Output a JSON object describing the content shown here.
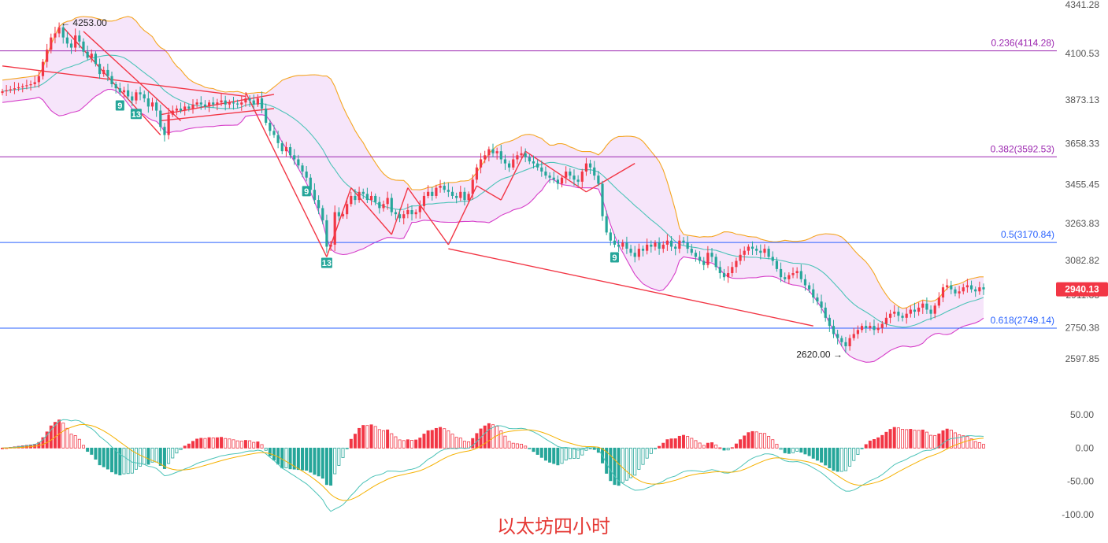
{
  "caption": "以太坊四小时",
  "current_price": {
    "label": "2940.13",
    "value": 2940.13,
    "color": "#f23645"
  },
  "colors": {
    "up": "#f23645",
    "down": "#26a69a",
    "band_fill": "#f3dcf8",
    "band_upper": "#f5a623",
    "band_lower": "#d63fc9",
    "band_mid": "#4cc3b8",
    "annotation": "#f23645",
    "macd_dif": "#4cc3b8",
    "macd_dea": "#f5b100"
  },
  "chart_data": [
    {
      "type": "candlestick",
      "title": "",
      "y_axis_ticks": [
        "4341.28",
        "4100.53",
        "3873.13",
        "3658.33",
        "3455.45",
        "3263.83",
        "3082.82",
        "2911.83",
        "2750.38",
        "2597.85"
      ],
      "ylim": [
        2520,
        4341.28
      ],
      "grid": false,
      "fib_levels": [
        {
          "label": "0.236(4114.28)",
          "value": 4114.28,
          "color": "#9c27b0"
        },
        {
          "label": "0.382(3592.53)",
          "value": 3592.53,
          "color": "#9c27b0"
        },
        {
          "label": "0.5(3170.84)",
          "value": 3170.84,
          "color": "#2962ff"
        },
        {
          "label": "0.618(2749.14)",
          "value": 2749.14,
          "color": "#2962ff"
        }
      ],
      "annotations": [
        {
          "label": "← 4253.00",
          "value": 4253.0,
          "type": "high"
        },
        {
          "label": "2620.00 →",
          "value": 2620.0,
          "type": "low"
        }
      ],
      "td_counts": [
        {
          "label": "9",
          "candle": 29
        },
        {
          "label": "13",
          "candle": 33
        },
        {
          "label": "9",
          "candle": 75
        },
        {
          "label": "13",
          "candle": 80
        },
        {
          "label": "9",
          "candle": 151
        }
      ],
      "closes": [
        3915,
        3920,
        3925,
        3930,
        3935,
        3940,
        3945,
        3950,
        3960,
        3990,
        4060,
        4120,
        4180,
        4200,
        4230,
        4180,
        4150,
        4130,
        4190,
        4160,
        4110,
        4080,
        4100,
        4050,
        4000,
        4020,
        3990,
        3950,
        3930,
        3910,
        3920,
        3890,
        3870,
        3910,
        3900,
        3880,
        3840,
        3860,
        3820,
        3740,
        3700,
        3800,
        3820,
        3830,
        3820,
        3840,
        3830,
        3850,
        3860,
        3850,
        3840,
        3860,
        3850,
        3860,
        3870,
        3850,
        3860,
        3855,
        3850,
        3860,
        3880,
        3870,
        3850,
        3880,
        3830,
        3760,
        3720,
        3700,
        3660,
        3620,
        3640,
        3600,
        3580,
        3550,
        3520,
        3490,
        3430,
        3380,
        3340,
        3280,
        3150,
        3160,
        3320,
        3300,
        3310,
        3360,
        3400,
        3380,
        3420,
        3410,
        3380,
        3400,
        3370,
        3340,
        3360,
        3390,
        3320,
        3310,
        3290,
        3310,
        3330,
        3310,
        3320,
        3350,
        3400,
        3420,
        3400,
        3440,
        3450,
        3430,
        3420,
        3400,
        3390,
        3420,
        3380,
        3410,
        3480,
        3540,
        3580,
        3600,
        3630,
        3610,
        3620,
        3580,
        3560,
        3540,
        3580,
        3600,
        3610,
        3590,
        3570,
        3560,
        3540,
        3520,
        3500,
        3490,
        3480,
        3460,
        3490,
        3520,
        3500,
        3480,
        3470,
        3520,
        3560,
        3540,
        3500,
        3460,
        3300,
        3220,
        3180,
        3160,
        3150,
        3170,
        3140,
        3120,
        3100,
        3140,
        3130,
        3160,
        3150,
        3170,
        3140,
        3160,
        3180,
        3150,
        3140,
        3180,
        3170,
        3140,
        3120,
        3100,
        3080,
        3060,
        3120,
        3100,
        3050,
        3020,
        3000,
        3020,
        3050,
        3080,
        3110,
        3130,
        3150,
        3140,
        3130,
        3120,
        3140,
        3100,
        3080,
        3040,
        3000,
        2990,
        3010,
        3020,
        3030,
        2990,
        2960,
        2940,
        2900,
        2880,
        2850,
        2800,
        2760,
        2720,
        2700,
        2680,
        2660,
        2700,
        2720,
        2740,
        2760,
        2750,
        2760,
        2740,
        2750,
        2770,
        2800,
        2820,
        2830,
        2810,
        2800,
        2820,
        2840,
        2830,
        2850,
        2870,
        2840,
        2820,
        2860,
        2900,
        2950,
        2960,
        2940,
        2920,
        2930,
        2950,
        2960,
        2940,
        2930,
        2950,
        2940
      ]
    },
    {
      "type": "macd",
      "y_axis_ticks": [
        "50.00",
        "0.00",
        "-50.00",
        "-100.00"
      ],
      "ylim": [
        -125,
        75
      ]
    }
  ]
}
